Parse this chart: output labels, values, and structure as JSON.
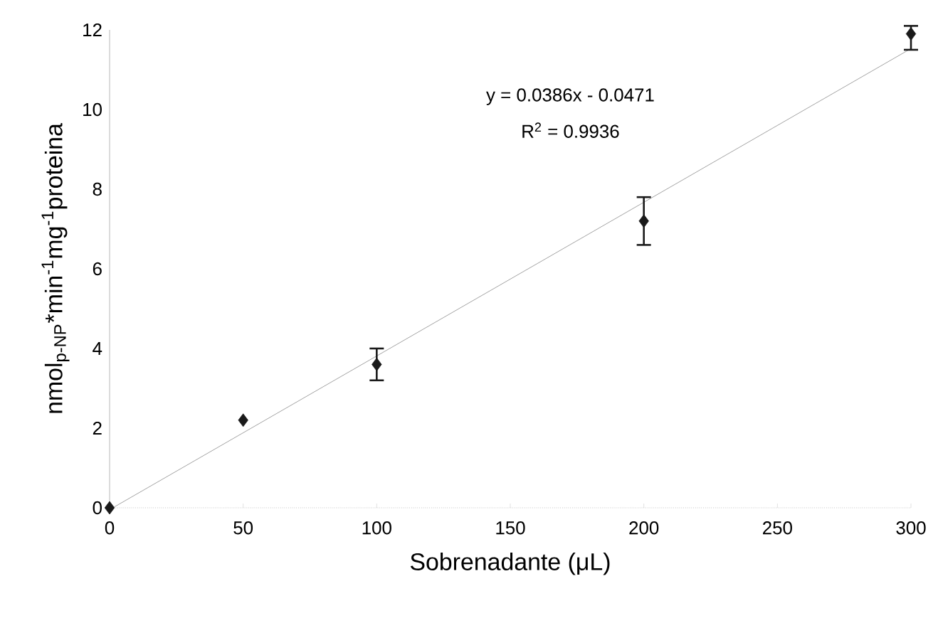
{
  "chart_data": {
    "type": "scatter",
    "xlabel": "Sobrenadante (μL)",
    "ylabel": "nmol$_{p-NP}$*min$^{-1}$mg$^{-1}$proteina",
    "annotations": [
      "y = 0.0386x - 0.0471",
      "R$^{2}$ = 0.9936"
    ],
    "series": [
      {
        "type": "line",
        "marker": "none",
        "color": "#8c8c8c",
        "x": [
          1.2,
          300
        ],
        "values": [
          0,
          11.53
        ]
      },
      {
        "marker": "diamond",
        "color": "#1a1a1a",
        "x": [
          0,
          50,
          100,
          200,
          300
        ],
        "values": [
          0,
          2.2,
          3.6,
          7.2,
          11.9
        ],
        "errors": [
          null,
          null,
          [
            3.2,
            4.0
          ],
          [
            6.6,
            7.8
          ],
          [
            11.5,
            12.1
          ]
        ]
      }
    ],
    "xlim": [
      0,
      300
    ],
    "ylim": [
      0,
      12
    ],
    "xticks": [
      0,
      50,
      100,
      150,
      200,
      250,
      300
    ],
    "yticks": [
      0,
      2,
      4,
      6,
      8,
      10,
      12
    ],
    "grid": false
  }
}
